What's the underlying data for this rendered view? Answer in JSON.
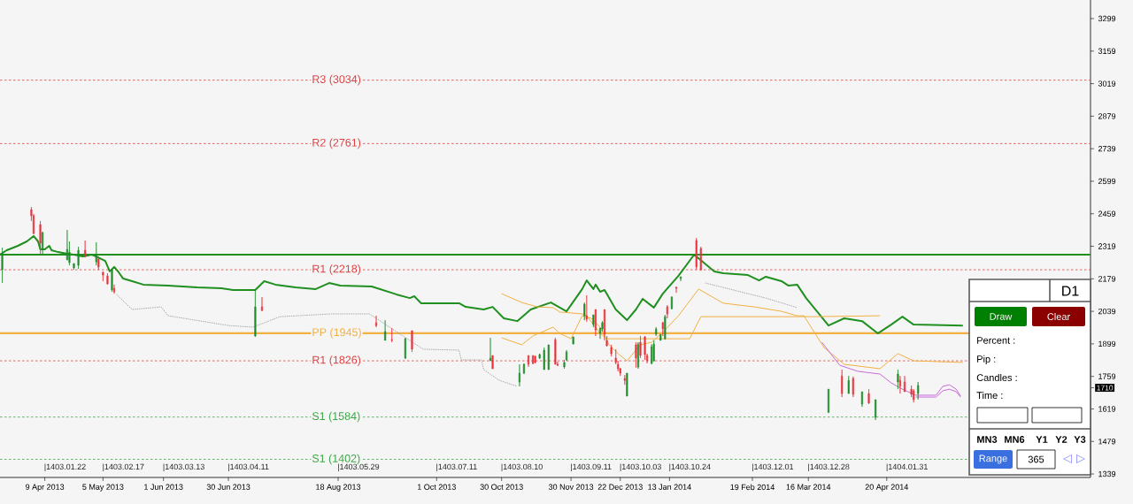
{
  "chart_data": {
    "type": "candlestick",
    "xlim": [
      "2013-03-20",
      "2014-07-20"
    ],
    "ylim": [
      1324,
      3379
    ],
    "xticks": [
      {
        "value": "2013-04-09",
        "label": "9 Apr 2013"
      },
      {
        "value": "2013-05-05",
        "label": "5 May 2013"
      },
      {
        "value": "2013-06-01",
        "label": "1 Jun 2013"
      },
      {
        "value": "2013-06-30",
        "label": "30 Jun 2013"
      },
      {
        "value": "2013-08-18",
        "label": "18 Aug 2013"
      },
      {
        "value": "2013-10-01",
        "label": "1 Oct 2013"
      },
      {
        "value": "2013-10-30",
        "label": "30 Oct 2013"
      },
      {
        "value": "2013-11-30",
        "label": "30 Nov 2013"
      },
      {
        "value": "2013-12-22",
        "label": "22 Dec 2013"
      },
      {
        "value": "2014-01-13",
        "label": "13 Jan 2014"
      },
      {
        "value": "2014-02-19",
        "label": "19 Feb 2014"
      },
      {
        "value": "2014-03-16",
        "label": "16 Mar 2014"
      },
      {
        "value": "2014-04-20",
        "label": "20 Apr 2014"
      }
    ],
    "yticks": [
      1339,
      1479,
      1619,
      {
        "value": 1710,
        "label": "1710"
      },
      1759,
      1899,
      2039,
      2179,
      2319,
      2459,
      2599,
      2739,
      2879,
      3019,
      3159,
      3299
    ],
    "x": [
      "2013-03-21",
      "2013-04-03",
      "2013-04-04",
      "2013-04-07",
      "2013-04-08",
      "2013-04-19",
      "2013-04-20",
      "2013-04-22",
      "2013-04-24",
      "2013-04-27",
      "2013-05-02",
      "2013-05-03",
      "2013-05-05",
      "2013-05-07",
      "2013-05-09",
      "2013-05-10",
      "2013-07-12",
      "2013-07-15",
      "2013-09-04",
      "2013-09-08",
      "2013-09-11",
      "2013-09-17",
      "2013-09-20",
      "2013-10-25",
      "2013-10-26",
      "2013-11-07",
      "2013-11-09",
      "2013-11-11",
      "2013-11-13",
      "2013-11-14",
      "2013-11-16",
      "2013-11-18",
      "2013-11-20",
      "2013-11-23",
      "2013-11-24",
      "2013-11-27",
      "2013-11-28",
      "2013-12-01",
      "2013-12-06",
      "2013-12-07",
      "2013-12-10",
      "2013-12-11",
      "2013-12-13",
      "2013-12-14",
      "2013-12-15",
      "2013-12-16",
      "2013-12-18",
      "2013-12-20",
      "2013-12-21",
      "2013-12-22",
      "2013-12-24",
      "2013-12-25",
      "2013-12-29",
      "2013-12-30",
      "2013-12-31",
      "2014-01-02",
      "2014-01-03",
      "2014-01-05",
      "2014-01-06",
      "2014-01-07",
      "2014-01-09",
      "2014-01-10",
      "2014-01-11",
      "2014-01-12",
      "2014-01-14",
      "2014-01-16",
      "2014-01-18",
      "2014-01-25",
      "2014-01-27",
      "2014-03-25",
      "2014-03-31",
      "2014-04-03",
      "2014-04-05",
      "2014-04-09",
      "2014-04-12",
      "2014-04-15",
      "2014-04-25",
      "2014-04-26",
      "2014-04-28",
      "2014-05-01",
      "2014-05-02",
      "2014-05-04"
    ],
    "ohlc": [
      [
        2218,
        2313,
        2161,
        2287
      ],
      [
        2477,
        2488,
        2428,
        2450
      ],
      [
        2450,
        2458,
        2370,
        2374
      ],
      [
        2412,
        2428,
        2283,
        2332
      ],
      [
        2306,
        2382,
        2287,
        2378
      ],
      [
        2260,
        2389,
        2260,
        2306
      ],
      [
        2249,
        2340,
        2237,
        2294
      ],
      [
        2226,
        2245,
        2218,
        2245
      ],
      [
        2237,
        2317,
        2222,
        2302
      ],
      [
        2302,
        2344,
        2271,
        2279
      ],
      [
        2252,
        2336,
        2237,
        2279
      ],
      [
        2264,
        2275,
        2218,
        2230
      ],
      [
        2207,
        2211,
        2169,
        2195
      ],
      [
        2192,
        2203,
        2154,
        2157
      ],
      [
        2131,
        2218,
        2123,
        2218
      ],
      [
        2138,
        2154,
        2115,
        2123
      ],
      [
        1933,
        2131,
        1929,
        2058
      ],
      [
        2058,
        2100,
        2039,
        2043
      ],
      [
        1990,
        2020,
        1971,
        1978
      ],
      [
        1914,
        2001,
        1914,
        1952
      ],
      [
        1917,
        1967,
        1906,
        1914
      ],
      [
        1838,
        1925,
        1834,
        1921
      ],
      [
        1956,
        1956,
        1864,
        1876
      ],
      [
        1826,
        1925,
        1826,
        1838
      ],
      [
        1849,
        1849,
        1792,
        1792
      ],
      [
        1735,
        1811,
        1716,
        1773
      ],
      [
        1773,
        1815,
        1769,
        1811
      ],
      [
        1849,
        1849,
        1800,
        1811
      ],
      [
        1849,
        1849,
        1811,
        1815
      ],
      [
        1845,
        1849,
        1815,
        1819
      ],
      [
        1838,
        1857,
        1834,
        1853
      ],
      [
        1788,
        1883,
        1788,
        1872
      ],
      [
        1788,
        1895,
        1788,
        1895
      ],
      [
        1917,
        1925,
        1811,
        1811
      ],
      [
        1811,
        1822,
        1803,
        1807
      ],
      [
        1800,
        1830,
        1792,
        1819
      ],
      [
        1830,
        1872,
        1826,
        1864
      ],
      [
        1898,
        1929,
        1898,
        1929
      ],
      [
        2020,
        2077,
        2001,
        2070
      ],
      [
        2020,
        2108,
        1994,
        2005
      ],
      [
        1982,
        2024,
        1971,
        2024
      ],
      [
        2047,
        2047,
        1933,
        1959
      ],
      [
        1944,
        1967,
        1921,
        1967
      ],
      [
        1963,
        1997,
        1952,
        1990
      ],
      [
        2047,
        2047,
        1914,
        1940
      ],
      [
        1914,
        1933,
        1887,
        1891
      ],
      [
        1883,
        1895,
        1845,
        1857
      ],
      [
        1838,
        1876,
        1811,
        1819
      ],
      [
        1811,
        1826,
        1781,
        1792
      ],
      [
        1792,
        1796,
        1761,
        1773
      ],
      [
        1750,
        1765,
        1723,
        1742
      ],
      [
        1674,
        1773,
        1674,
        1773
      ],
      [
        1895,
        1906,
        1796,
        1838
      ],
      [
        1800,
        1906,
        1792,
        1898
      ],
      [
        1906,
        1933,
        1838,
        1849
      ],
      [
        1929,
        1933,
        1830,
        1853
      ],
      [
        1849,
        1857,
        1815,
        1826
      ],
      [
        1815,
        1898,
        1811,
        1887
      ],
      [
        1826,
        1914,
        1822,
        1898
      ],
      [
        1940,
        1971,
        1933,
        1963
      ],
      [
        1914,
        1940,
        1914,
        1940
      ],
      [
        1990,
        1994,
        1933,
        1963
      ],
      [
        1921,
        2024,
        1917,
        2016
      ],
      [
        2058,
        2066,
        2009,
        2028
      ],
      [
        2051,
        2104,
        2047,
        2100
      ],
      [
        2142,
        2146,
        2119,
        2138
      ],
      [
        2180,
        2188,
        2169,
        2188
      ],
      [
        2344,
        2355,
        2218,
        2230
      ],
      [
        2310,
        2317,
        2214,
        2218
      ],
      [
        1605,
        1704,
        1601,
        1704
      ],
      [
        1761,
        1788,
        1670,
        1685
      ],
      [
        1685,
        1761,
        1685,
        1742
      ],
      [
        1750,
        1758,
        1670,
        1682
      ],
      [
        1640,
        1693,
        1628,
        1693
      ],
      [
        1685,
        1704,
        1640,
        1644
      ],
      [
        1583,
        1659,
        1571,
        1659
      ],
      [
        1735,
        1788,
        1704,
        1769
      ],
      [
        1742,
        1761,
        1685,
        1716
      ],
      [
        1735,
        1761,
        1693,
        1693
      ],
      [
        1704,
        1720,
        1670,
        1682
      ],
      [
        1697,
        1704,
        1647,
        1659
      ],
      [
        1685,
        1735,
        1659,
        1720
      ]
    ],
    "series": [
      {
        "type": "line",
        "color": "#1f8f1f",
        "x": [
          "2013-03-20",
          "2013-03-23",
          "2013-03-28",
          "2013-04-01",
          "2013-04-04",
          "2013-04-06",
          "2013-04-07",
          "2013-04-09",
          "2013-04-11",
          "2013-04-12",
          "2013-04-15",
          "2013-04-19",
          "2013-04-22",
          "2013-04-26",
          "2013-04-30",
          "2013-05-02",
          "2013-05-06",
          "2013-05-08",
          "2013-05-10",
          "2013-05-12",
          "2013-05-14",
          "2013-05-18",
          "2013-05-23",
          "2013-06-03",
          "2013-06-16",
          "2013-06-27",
          "2013-07-02",
          "2013-07-12",
          "2013-07-16",
          "2013-07-21",
          "2013-07-30",
          "2013-08-08",
          "2013-08-14",
          "2013-08-19",
          "2013-09-02",
          "2013-09-13",
          "2013-09-19",
          "2013-09-21",
          "2013-09-24",
          "2013-10-11",
          "2013-10-14",
          "2013-10-22",
          "2013-10-26",
          "2013-10-31",
          "2013-11-06",
          "2013-11-12",
          "2013-11-21",
          "2013-11-28",
          "2013-12-05",
          "2013-12-07",
          "2013-12-10",
          "2013-12-11",
          "2013-12-13",
          "2013-12-15",
          "2013-12-20",
          "2013-12-25",
          "2013-12-29",
          "2014-01-01",
          "2014-01-06",
          "2014-01-10",
          "2014-01-17",
          "2014-01-24",
          "2014-02-02",
          "2014-02-06",
          "2014-02-17",
          "2014-02-22",
          "2014-02-25",
          "2014-03-04",
          "2014-03-07",
          "2014-03-11",
          "2014-03-15",
          "2014-03-25",
          "2014-04-01",
          "2014-04-09",
          "2014-04-16",
          "2014-04-22",
          "2014-04-27",
          "2014-05-02",
          "2014-05-24"
        ],
        "values": [
          2283,
          2302,
          2321,
          2340,
          2363,
          2340,
          2306,
          2306,
          2321,
          2302,
          2294,
          2287,
          2283,
          2275,
          2283,
          2275,
          2256,
          2211,
          2230,
          2207,
          2180,
          2169,
          2154,
          2150,
          2142,
          2138,
          2131,
          2131,
          2169,
          2154,
          2142,
          2135,
          2161,
          2150,
          2146,
          2112,
          2096,
          2104,
          2074,
          2074,
          2058,
          2047,
          2058,
          2009,
          1997,
          2047,
          2077,
          2039,
          2135,
          2172,
          2135,
          2154,
          2123,
          2131,
          2047,
          2001,
          2047,
          2093,
          2055,
          2115,
          2192,
          2283,
          2211,
          2203,
          2195,
          2172,
          2188,
          2169,
          2150,
          2154,
          2096,
          1978,
          2009,
          1997,
          1944,
          1982,
          2016,
          1982,
          1978
        ]
      },
      {
        "type": "line",
        "color": "#f2b040",
        "x": [
          "2013-10-30",
          "2013-11-08",
          "2013-11-15",
          "2013-11-22",
          "2013-11-25",
          "2013-12-05",
          "2013-12-07",
          "2013-12-10",
          "2013-12-13",
          "2013-12-16",
          "2014-01-22",
          "2014-01-27",
          "2014-03-18",
          "2014-04-17"
        ],
        "values": [
          2115,
          2077,
          2058,
          2055,
          2036,
          2028,
          2020,
          1982,
          1944,
          1921,
          1921,
          2016,
          2016,
          2020
        ]
      },
      {
        "type": "line",
        "color": "#f2b040",
        "x": [
          "2013-10-30",
          "2013-11-08",
          "2013-11-13",
          "2013-11-22",
          "2013-11-25",
          "2013-11-30",
          "2013-12-05",
          "2013-12-09",
          "2013-12-13",
          "2013-12-17",
          "2013-12-21",
          "2013-12-25",
          "2013-12-31",
          "2014-01-05",
          "2014-01-11",
          "2014-01-17",
          "2014-01-26",
          "2014-02-06",
          "2014-02-20",
          "2014-03-04",
          "2014-03-11",
          "2014-03-14",
          "2014-03-23",
          "2014-04-01",
          "2014-04-17",
          "2014-04-25",
          "2014-05-02",
          "2014-05-24"
        ],
        "values": [
          1925,
          1895,
          1933,
          1971,
          1944,
          1921,
          2020,
          2009,
          1971,
          1895,
          1857,
          1826,
          1895,
          1906,
          1959,
          2020,
          2135,
          2074,
          2058,
          2039,
          2020,
          2020,
          1883,
          1811,
          1792,
          1857,
          1826,
          1819
        ]
      },
      {
        "type": "line",
        "color": "#c86ad8",
        "x": [
          "2014-03-22",
          "2014-03-30",
          "2014-04-07",
          "2014-04-17",
          "2014-04-22",
          "2014-04-27",
          "2014-05-03",
          "2014-05-12",
          "2014-05-15",
          "2014-05-18",
          "2014-05-21",
          "2014-05-23"
        ],
        "values": [
          1906,
          1807,
          1781,
          1769,
          1731,
          1704,
          1678,
          1678,
          1716,
          1723,
          1704,
          1674
        ]
      },
      {
        "type": "line",
        "color": "#c86ad8",
        "x": [
          "2014-05-03",
          "2014-05-12",
          "2014-05-15",
          "2014-05-18",
          "2014-05-21",
          "2014-05-23"
        ],
        "values": [
          1670,
          1670,
          1697,
          1704,
          1693,
          1670
        ]
      },
      {
        "type": "line",
        "color": "#a0a0a0",
        "line_style": "dotted",
        "x": [
          "2013-05-11",
          "2013-05-18",
          "2013-05-31",
          "2013-06-03",
          "2013-06-30",
          "2013-07-11",
          "2013-07-23",
          "2013-08-15",
          "2013-09-01",
          "2013-09-25",
          "2013-10-11",
          "2013-10-12",
          "2013-10-21",
          "2013-10-22",
          "2013-10-29",
          "2013-11-06",
          "2013-12-11",
          "2014-01-29",
          "2014-02-25",
          "2014-03-11"
        ],
        "values": [
          2112,
          2047,
          2058,
          2020,
          1978,
          1971,
          2016,
          2028,
          2028,
          1876,
          1872,
          1830,
          1830,
          1788,
          1742,
          1716,
          null,
          2161,
          2096,
          2055
        ]
      }
    ],
    "ref_lines": [
      {
        "axis": "y",
        "value": 3034,
        "label": "R3 (3034)",
        "color": "#e04040",
        "line_style": "dashed"
      },
      {
        "axis": "y",
        "value": 2761,
        "label": "R2 (2761)",
        "color": "#e04040",
        "line_style": "dashed"
      },
      {
        "axis": "y",
        "value": 2283,
        "color": "#1f8f1f",
        "line_style": "solid"
      },
      {
        "axis": "y",
        "value": 2218,
        "label": "R1 (2218)",
        "color": "#e04040",
        "line_style": "dashed"
      },
      {
        "axis": "y",
        "value": 1945,
        "label": "PP (1945)",
        "color": "#f2b040",
        "line_style": "solid"
      },
      {
        "axis": "y",
        "value": 1826,
        "label": "R1 (1826)",
        "color": "#e04040",
        "line_style": "dashed"
      },
      {
        "axis": "y",
        "value": 1584,
        "label": "S1 (1584)",
        "color": "#3aa845",
        "line_style": "dashed"
      },
      {
        "axis": "y",
        "value": 1402,
        "label": "S1 (1402)",
        "color": "#3aa845",
        "line_style": "dashed"
      }
    ],
    "annotations": [
      "|1403.01.22",
      "|1403.02.17",
      "|1403.03.13",
      "|1403.04.11",
      "|1403.05.29",
      "|1403.07.11",
      "|1403.08.10",
      "|1403.09.11",
      "|1403.10.03",
      "|1403.10.24",
      "|1403.12.01",
      "|1403.12.28",
      "|1404.01.31",
      "D1",
      "Draw",
      "Clear",
      "Percent :",
      "Pip :",
      "Candles :",
      "Time :",
      "MN3",
      "MN6",
      "Y1",
      "Y2",
      "Y3",
      "Range",
      "365",
      "◁",
      "▷"
    ]
  }
}
